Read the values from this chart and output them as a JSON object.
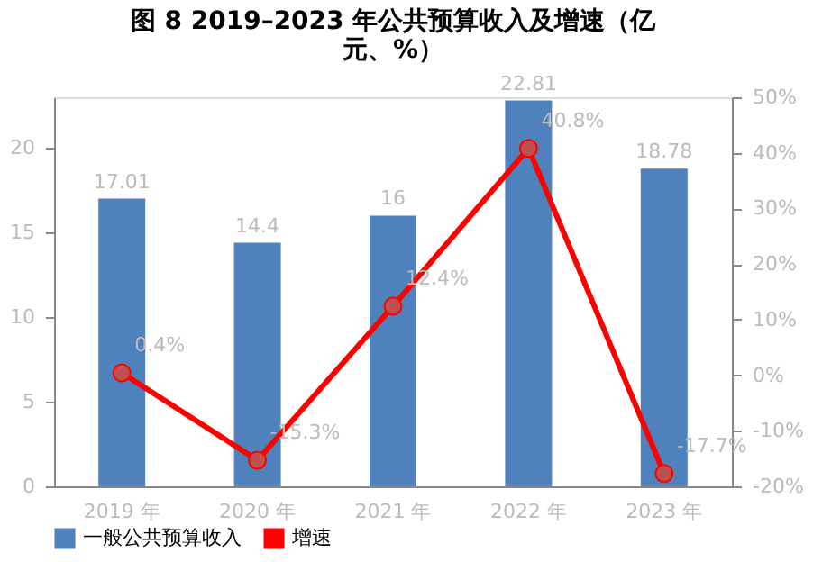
{
  "chart_data": {
    "type": "bar",
    "title": [
      "图 8   2019–2023 年公共预算收入及增速（亿",
      "元、%）"
    ],
    "categories": [
      "2019 年",
      "2020 年",
      "2021 年",
      "2022 年",
      "2023 年"
    ],
    "series": [
      {
        "name": "一般公共预算收入",
        "color": "#4f81bd",
        "values": [
          17.01,
          14.4,
          16,
          22.81,
          18.78
        ],
        "value_labels": [
          "17.01",
          "14.4",
          "16",
          "22.81",
          "18.78"
        ]
      },
      {
        "name": "增速",
        "type": "line",
        "axis": "y2",
        "color": "#ff0000",
        "marker": "circle",
        "values": [
          0.4,
          -15.3,
          12.4,
          40.8,
          -17.7
        ],
        "value_labels": [
          "0.4%",
          "-15.3%",
          "12.4%",
          "40.8%",
          "-17.7%"
        ]
      }
    ],
    "ylim": [
      0,
      23
    ],
    "yticks": [
      0,
      5,
      10,
      15,
      20
    ],
    "y2lim": [
      -20,
      50
    ],
    "y2ticks": [
      {
        "value": -20,
        "label": "-20%"
      },
      {
        "value": -10,
        "label": "-10%"
      },
      {
        "value": 0,
        "label": "0%"
      },
      {
        "value": 10,
        "label": "10%"
      },
      {
        "value": 20,
        "label": "20%"
      },
      {
        "value": 30,
        "label": "30%"
      },
      {
        "value": 40,
        "label": "40%"
      },
      {
        "value": 50,
        "label": "50%"
      }
    ],
    "grid": false,
    "legend": "bottom"
  }
}
